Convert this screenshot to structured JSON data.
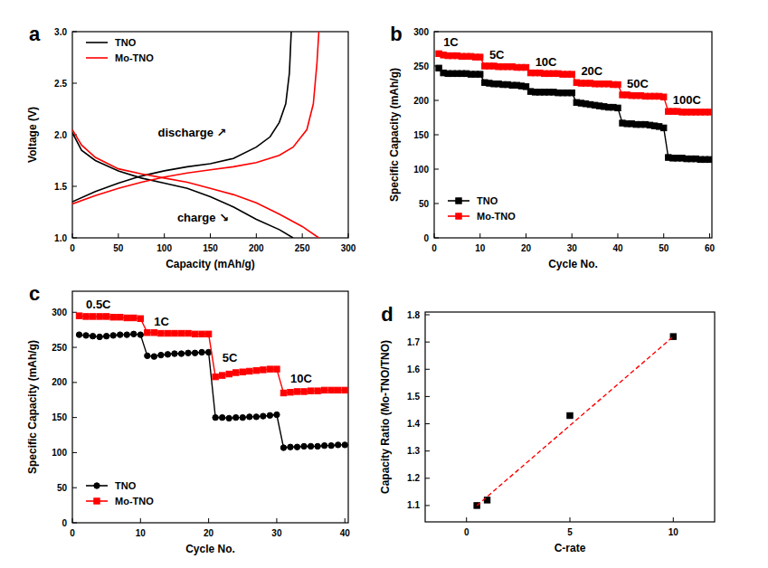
{
  "chart_data": [
    {
      "type": "line",
      "title": "a",
      "xlabel": "Capacity (mAh/g)",
      "ylabel": "Voltage (V)",
      "xlim": [
        0,
        300
      ],
      "ylim": [
        1,
        3
      ],
      "xticks": [
        0,
        50,
        100,
        150,
        200,
        250,
        300
      ],
      "yticks": [
        {
          "value": 1,
          "label": "1.0"
        },
        1.5,
        {
          "value": 2,
          "label": "2.0"
        },
        2.5,
        {
          "value": 3,
          "label": "3.0"
        }
      ],
      "legend": "upper left",
      "annotations": [
        "discharge ↗",
        "charge ↘"
      ],
      "series": [
        {
          "name": "TNO",
          "color": "#000000",
          "curves": [
            {
              "x": [
                0,
                10,
                25,
                50,
                75,
                100,
                125,
                150,
                175,
                200,
                225,
                240
              ],
              "values": [
                2.02,
                1.85,
                1.75,
                1.65,
                1.58,
                1.53,
                1.48,
                1.4,
                1.3,
                1.18,
                1.08,
                1.0
              ]
            },
            {
              "x": [
                0,
                25,
                50,
                75,
                100,
                125,
                150,
                175,
                200,
                215,
                225,
                232,
                236,
                238
              ],
              "values": [
                1.35,
                1.45,
                1.53,
                1.6,
                1.65,
                1.69,
                1.72,
                1.77,
                1.88,
                1.98,
                2.12,
                2.3,
                2.6,
                3.0
              ]
            }
          ]
        },
        {
          "name": "Mo-TNO",
          "color": "#ff0000",
          "curves": [
            {
              "x": [
                0,
                10,
                25,
                50,
                75,
                100,
                125,
                150,
                175,
                200,
                225,
                250,
                268
              ],
              "values": [
                2.05,
                1.9,
                1.78,
                1.67,
                1.62,
                1.58,
                1.54,
                1.48,
                1.42,
                1.34,
                1.23,
                1.11,
                1.0
              ]
            },
            {
              "x": [
                0,
                25,
                50,
                75,
                100,
                125,
                150,
                175,
                200,
                225,
                240,
                255,
                262,
                266,
                268
              ],
              "values": [
                1.33,
                1.41,
                1.48,
                1.54,
                1.59,
                1.63,
                1.66,
                1.69,
                1.73,
                1.8,
                1.88,
                2.05,
                2.3,
                2.7,
                3.0
              ]
            }
          ]
        }
      ]
    },
    {
      "type": "line",
      "title": "b",
      "xlabel": "Cycle No.",
      "ylabel": "Specific Capacity (mAh/g)",
      "xlim": [
        0,
        60.5
      ],
      "ylim": [
        0,
        300
      ],
      "xticks": [
        0,
        10,
        20,
        30,
        40,
        50,
        60
      ],
      "yticks": [
        0,
        50,
        100,
        150,
        200,
        250,
        300
      ],
      "legend": "lower left",
      "annotations": [
        "1C",
        "5C",
        "10C",
        "20C",
        "50C",
        "100C"
      ],
      "series": [
        {
          "name": "TNO",
          "color": "#000000",
          "marker": "square",
          "x": [
            1,
            2,
            3,
            4,
            5,
            6,
            7,
            8,
            9,
            10,
            11,
            12,
            13,
            14,
            15,
            16,
            17,
            18,
            19,
            20,
            21,
            22,
            23,
            24,
            25,
            26,
            27,
            28,
            29,
            30,
            31,
            32,
            33,
            34,
            35,
            36,
            37,
            38,
            39,
            40,
            41,
            42,
            43,
            44,
            45,
            46,
            47,
            48,
            49,
            50,
            51,
            52,
            53,
            54,
            55,
            56,
            57,
            58,
            59,
            60
          ],
          "values": [
            247,
            240,
            239,
            239,
            239,
            239,
            239,
            238,
            238,
            238,
            226,
            225,
            224,
            224,
            223,
            223,
            222,
            222,
            221,
            220,
            213,
            212,
            212,
            212,
            212,
            212,
            211,
            211,
            211,
            211,
            197,
            196,
            195,
            194,
            193,
            192,
            191,
            190,
            190,
            189,
            167,
            166,
            166,
            165,
            165,
            165,
            164,
            163,
            162,
            160,
            117,
            116,
            116,
            116,
            115,
            115,
            115,
            114,
            114,
            114
          ]
        },
        {
          "name": "Mo-TNO",
          "color": "#ff0000",
          "marker": "square",
          "x": [
            1,
            2,
            3,
            4,
            5,
            6,
            7,
            8,
            9,
            10,
            11,
            12,
            13,
            14,
            15,
            16,
            17,
            18,
            19,
            20,
            21,
            22,
            23,
            24,
            25,
            26,
            27,
            28,
            29,
            30,
            31,
            32,
            33,
            34,
            35,
            36,
            37,
            38,
            39,
            40,
            41,
            42,
            43,
            44,
            45,
            46,
            47,
            48,
            49,
            50,
            51,
            52,
            53,
            54,
            55,
            56,
            57,
            58,
            59,
            60
          ],
          "values": [
            268,
            266,
            265,
            265,
            265,
            264,
            264,
            264,
            263,
            263,
            250,
            250,
            250,
            249,
            249,
            249,
            249,
            248,
            248,
            248,
            240,
            240,
            240,
            239,
            239,
            239,
            239,
            238,
            238,
            238,
            226,
            225,
            225,
            225,
            224,
            224,
            224,
            224,
            223,
            223,
            208,
            208,
            207,
            207,
            207,
            206,
            206,
            206,
            206,
            205,
            184,
            184,
            184,
            183,
            183,
            183,
            183,
            183,
            183,
            183
          ]
        }
      ]
    },
    {
      "type": "line",
      "title": "c",
      "xlabel": "Cycle No.",
      "ylabel": "Specific Capacity (mAh/g)",
      "xlim": [
        0,
        40.5
      ],
      "ylim": [
        0,
        330
      ],
      "xticks": [
        0,
        10,
        20,
        30,
        40
      ],
      "yticks": [
        0,
        50,
        100,
        150,
        200,
        250,
        300
      ],
      "legend": "lower left",
      "annotations": [
        "0.5C",
        "1C",
        "5C",
        "10C"
      ],
      "series": [
        {
          "name": "TNO",
          "color": "#000000",
          "marker": "circle",
          "x": [
            1,
            2,
            3,
            4,
            5,
            6,
            7,
            8,
            9,
            10,
            11,
            12,
            13,
            14,
            15,
            16,
            17,
            18,
            19,
            20,
            21,
            22,
            23,
            24,
            25,
            26,
            27,
            28,
            29,
            30,
            31,
            32,
            33,
            34,
            35,
            36,
            37,
            38,
            39,
            40
          ],
          "values": [
            268,
            267,
            266,
            265,
            266,
            267,
            268,
            268,
            269,
            268,
            238,
            237,
            239,
            240,
            241,
            241,
            242,
            242,
            243,
            243,
            150,
            150,
            149,
            150,
            150,
            151,
            151,
            152,
            153,
            154,
            107,
            108,
            108,
            109,
            109,
            109,
            110,
            110,
            111,
            111
          ]
        },
        {
          "name": "Mo-TNO",
          "color": "#ff0000",
          "marker": "square",
          "x": [
            1,
            2,
            3,
            4,
            5,
            6,
            7,
            8,
            9,
            10,
            11,
            12,
            13,
            14,
            15,
            16,
            17,
            18,
            19,
            20,
            21,
            22,
            23,
            24,
            25,
            26,
            27,
            28,
            29,
            30,
            31,
            32,
            33,
            34,
            35,
            36,
            37,
            38,
            39,
            40
          ],
          "values": [
            295,
            294,
            294,
            294,
            294,
            293,
            293,
            292,
            292,
            291,
            271,
            271,
            270,
            270,
            270,
            270,
            270,
            269,
            269,
            269,
            208,
            210,
            212,
            214,
            215,
            216,
            217,
            218,
            219,
            219,
            185,
            186,
            187,
            187,
            188,
            188,
            189,
            189,
            189,
            189
          ]
        }
      ]
    },
    {
      "type": "scatter",
      "title": "d",
      "xlabel": "C-rate",
      "ylabel": "Capacity Ratio (Mo-TNO/TNO)",
      "xlim": [
        -2,
        12
      ],
      "ylim": [
        1.04,
        1.81
      ],
      "xticks": [
        0,
        5,
        10
      ],
      "yticks": [
        1.1,
        1.2,
        1.3,
        1.4,
        1.5,
        1.6,
        1.7,
        1.8
      ],
      "series": [
        {
          "type": "scatter",
          "color": "#000000",
          "marker": "square",
          "x": [
            0.5,
            1,
            5,
            10
          ],
          "values": [
            1.1,
            1.12,
            1.43,
            1.72
          ]
        },
        {
          "type": "line",
          "color": "#ff0000",
          "line_style": "dashed",
          "x": [
            0.5,
            10
          ],
          "values": [
            1.1,
            1.72
          ]
        }
      ]
    }
  ]
}
